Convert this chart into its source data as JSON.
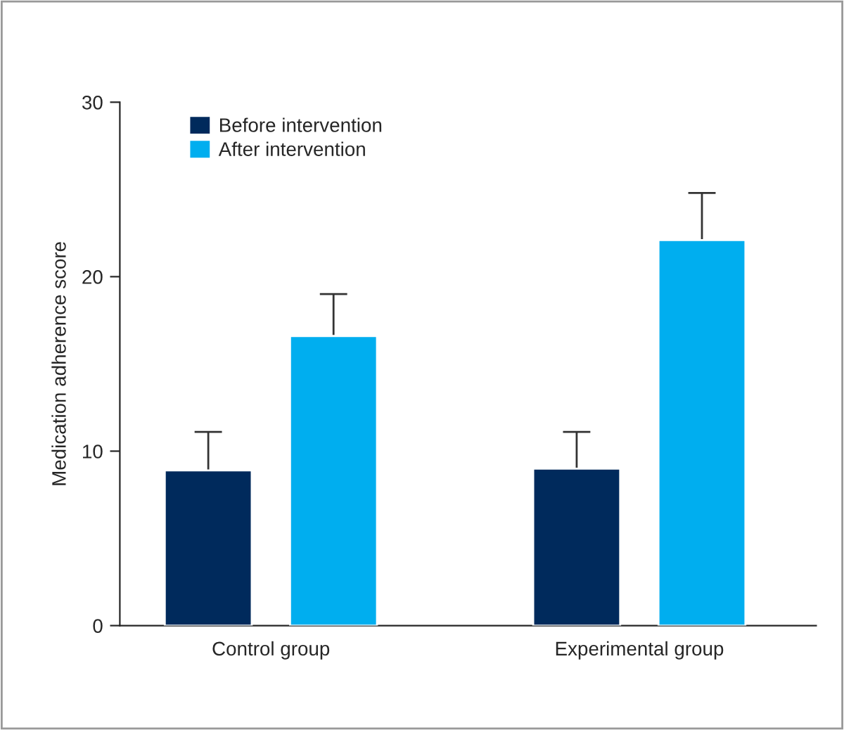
{
  "chart_data": {
    "type": "bar",
    "ylabel": "Medication adherence score",
    "categories": [
      "Control group",
      "Experimental group"
    ],
    "series": [
      {
        "name": "Before intervention",
        "color": "#002a5c",
        "values": [
          8.9,
          9.0
        ],
        "errors": [
          2.2,
          2.1
        ]
      },
      {
        "name": "After intervention",
        "color": "#00aeef",
        "values": [
          16.6,
          22.1
        ],
        "errors": [
          2.4,
          2.7
        ]
      }
    ],
    "ylim": [
      0,
      30
    ],
    "yticks": [
      0,
      10,
      20,
      30
    ],
    "grid": false,
    "legend": "top left"
  }
}
